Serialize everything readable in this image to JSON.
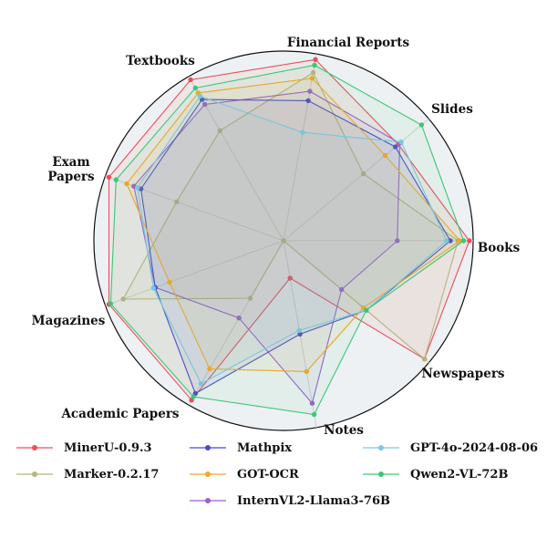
{
  "chart_data": {
    "type": "radar",
    "categories": [
      "Books",
      "Newspapers",
      "Notes",
      "Academic Papers",
      "Magazines",
      "Exam Papers",
      "Textbooks",
      "Financial Reports",
      "Slides"
    ],
    "category_display": [
      "Books",
      "Newspapers",
      "Notes",
      "Academic Papers",
      "Magazines",
      "Exam\nPapers",
      "Textbooks",
      "Financial Reports",
      "Slides"
    ],
    "rlim": [
      0,
      1
    ],
    "grid": true,
    "legend_position": "bottom",
    "series": [
      {
        "name": "MinerU-0.9.3",
        "color": "#e8505b",
        "values": [
          0.98,
          0.97,
          0.2,
          0.97,
          0.98,
          0.98,
          0.98,
          0.97,
          0.79
        ]
      },
      {
        "name": "Marker-0.2.17",
        "color": "#b5b57e",
        "values": [
          0.92,
          0.97,
          0.0,
          0.35,
          0.9,
          0.6,
          0.67,
          0.9,
          0.55
        ]
      },
      {
        "name": "InternVL2-Llama3-76B",
        "color": "#9a5fd0",
        "values": [
          0.6,
          0.4,
          0.87,
          0.47,
          0.72,
          0.84,
          0.83,
          0.8,
          0.8
        ]
      },
      {
        "name": "Mathpix",
        "color": "#4a4acb",
        "values": [
          0.88,
          0.57,
          0.5,
          0.93,
          0.72,
          0.8,
          0.86,
          0.75,
          0.77
        ]
      },
      {
        "name": "GOT-OCR",
        "color": "#f5a623",
        "values": [
          0.93,
          0.55,
          0.7,
          0.78,
          0.64,
          0.88,
          0.9,
          0.87,
          0.7
        ]
      },
      {
        "name": "GPT-4o-2024-08-06",
        "color": "#7ec8e3",
        "values": [
          0.86,
          0.57,
          0.48,
          0.87,
          0.73,
          0.82,
          0.88,
          0.58,
          0.81
        ]
      },
      {
        "name": "Qwen2-VL-72B",
        "color": "#3cc777",
        "values": [
          0.95,
          0.57,
          0.93,
          0.95,
          0.97,
          0.94,
          0.93,
          0.94,
          0.95
        ]
      }
    ]
  },
  "legend": {
    "row1": [
      "MinerU-0.9.3",
      "Mathpix",
      "GPT-4o-2024-08-06"
    ],
    "row2": [
      "Marker-0.2.17",
      "GOT-OCR",
      "Qwen2-VL-72B"
    ],
    "row3": [
      "InternVL2-Llama3-76B"
    ]
  },
  "colors": {
    "MinerU-0.9.3": "#e8505b",
    "Mathpix": "#4a4acb",
    "GPT-4o-2024-08-06": "#7ec8e3",
    "Marker-0.2.17": "#b5b57e",
    "GOT-OCR": "#f5a623",
    "Qwen2-VL-72B": "#3cc777",
    "InternVL2-Llama3-76B": "#9a5fd0",
    "background": "#eef1f3",
    "grid": "#cfcfcf"
  }
}
